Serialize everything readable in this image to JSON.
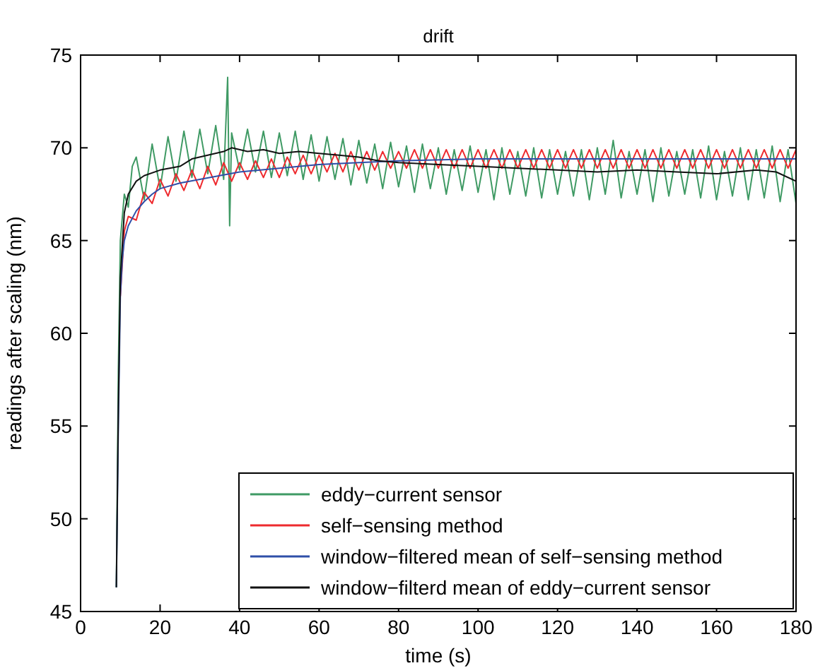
{
  "chart_data": {
    "type": "line",
    "title": "drift",
    "xlabel": "time (s)",
    "ylabel": "readings after scaling (nm)",
    "xlim": [
      0,
      180
    ],
    "ylim": [
      45,
      75
    ],
    "xticks": [
      0,
      20,
      40,
      60,
      80,
      100,
      120,
      140,
      160,
      180
    ],
    "yticks": [
      45,
      50,
      55,
      60,
      65,
      70,
      75
    ],
    "grid": false,
    "legend": "bottom right",
    "series": [
      {
        "name": "eddy−current sensor",
        "color": "#3f9a64",
        "x": [
          9,
          9.5,
          10,
          11,
          12,
          13,
          14,
          16,
          18,
          20,
          22,
          24,
          26,
          28,
          30,
          32,
          34,
          36,
          37,
          37.5,
          38,
          40,
          42,
          44,
          46,
          48,
          50,
          52,
          54,
          56,
          58,
          60,
          62,
          64,
          66,
          68,
          70,
          72,
          74,
          76,
          78,
          80,
          82,
          84,
          86,
          88,
          90,
          92,
          94,
          96,
          98,
          100,
          102,
          104,
          106,
          108,
          110,
          112,
          114,
          116,
          118,
          120,
          122,
          124,
          126,
          128,
          130,
          132,
          134,
          136,
          138,
          140,
          142,
          144,
          146,
          148,
          150,
          152,
          154,
          156,
          158,
          160,
          162,
          164,
          166,
          168,
          170,
          172,
          174,
          176,
          178,
          180
        ],
        "values": [
          46.3,
          58,
          65,
          67.5,
          66.8,
          69,
          69.5,
          67.2,
          70.2,
          67.8,
          70.6,
          68.2,
          70.9,
          68.4,
          71,
          68.6,
          71.2,
          68.3,
          73.8,
          65.8,
          70.8,
          68.8,
          71,
          68.7,
          70.9,
          68.4,
          70.8,
          68.5,
          70.9,
          68.3,
          70.7,
          68.2,
          70.6,
          68.3,
          70.5,
          68,
          70.4,
          68.1,
          70.2,
          67.8,
          70.3,
          67.9,
          70.1,
          67.6,
          70.2,
          67.8,
          70,
          67.5,
          69.9,
          67.7,
          70.1,
          67.6,
          69.9,
          67.2,
          70,
          67.5,
          69.8,
          67.4,
          70,
          67.3,
          69.9,
          67.5,
          69.8,
          67.4,
          69.9,
          67.2,
          70,
          67.5,
          70.4,
          67.3,
          69.8,
          67.5,
          69.9,
          67.1,
          70,
          67.4,
          69.8,
          67.5,
          69.9,
          67.3,
          70.1,
          67.2,
          69.8,
          67.4,
          70,
          67.2,
          69.9,
          67.3,
          70.1,
          67.1,
          69.9,
          67
        ]
      },
      {
        "name": "self−sensing method",
        "color": "#ee2a2e",
        "x": [
          10,
          11,
          12,
          14,
          16,
          18,
          20,
          22,
          24,
          26,
          28,
          30,
          32,
          34,
          36,
          38,
          40,
          42,
          44,
          46,
          48,
          50,
          52,
          54,
          56,
          58,
          60,
          62,
          64,
          66,
          68,
          70,
          72,
          74,
          76,
          78,
          80,
          82,
          84,
          86,
          88,
          90,
          92,
          94,
          96,
          98,
          100,
          102,
          104,
          106,
          108,
          110,
          112,
          114,
          116,
          118,
          120,
          122,
          124,
          126,
          128,
          130,
          132,
          134,
          136,
          138,
          140,
          142,
          144,
          146,
          148,
          150,
          152,
          154,
          156,
          158,
          160,
          162,
          164,
          166,
          168,
          170,
          172,
          174,
          176,
          178,
          180
        ],
        "values": [
          62,
          65.5,
          66.3,
          66.1,
          67.6,
          67,
          68.3,
          67.4,
          68.6,
          67.7,
          68.8,
          67.8,
          69,
          68,
          69.2,
          68.2,
          69.2,
          68.3,
          69.3,
          68.4,
          69.4,
          68.4,
          69.5,
          68.6,
          69.6,
          68.6,
          69.6,
          68.7,
          69.7,
          68.7,
          69.8,
          68.8,
          69.8,
          68.8,
          69.8,
          68.9,
          69.8,
          68.9,
          69.9,
          68.9,
          69.9,
          68.9,
          69.9,
          68.9,
          69.9,
          68.9,
          69.9,
          68.9,
          69.9,
          68.9,
          69.9,
          68.9,
          69.9,
          68.9,
          69.9,
          68.9,
          69.9,
          68.9,
          69.9,
          68.9,
          69.9,
          68.9,
          69.9,
          68.9,
          69.9,
          68.9,
          69.9,
          68.9,
          69.9,
          68.9,
          69.9,
          68.9,
          69.9,
          68.9,
          69.9,
          68.9,
          69.9,
          68.9,
          69.9,
          68.9,
          69.9,
          68.9,
          69.9,
          68.9,
          69.9,
          68.9,
          69.9
        ]
      },
      {
        "name": "window−filtered mean of self−sensing method",
        "color": "#2f4fa8",
        "x": [
          9,
          9.5,
          10,
          10.5,
          11,
          12,
          14,
          16,
          18,
          20,
          25,
          30,
          40,
          50,
          60,
          70,
          80,
          100,
          140,
          180
        ],
        "values": [
          46.3,
          55,
          62,
          64,
          65,
          65.8,
          66.6,
          67.1,
          67.5,
          67.8,
          68.1,
          68.3,
          68.7,
          68.9,
          69.1,
          69.2,
          69.3,
          69.4,
          69.4,
          69.4
        ]
      },
      {
        "name": "window−filterd mean of eddy−current sensor",
        "color": "#111111",
        "x": [
          9,
          9.5,
          10,
          11,
          12,
          14,
          16,
          20,
          25,
          28,
          32,
          36,
          38,
          42,
          46,
          50,
          55,
          60,
          65,
          70,
          75,
          80,
          90,
          100,
          110,
          120,
          130,
          140,
          150,
          160,
          170,
          175,
          180
        ],
        "values": [
          46.3,
          56,
          63,
          66.5,
          67.5,
          68.2,
          68.5,
          68.8,
          69,
          69.4,
          69.6,
          69.8,
          70,
          69.8,
          69.9,
          69.7,
          69.8,
          69.7,
          69.6,
          69.5,
          69.3,
          69.2,
          69.1,
          69,
          68.9,
          68.8,
          68.7,
          68.8,
          68.7,
          68.6,
          68.8,
          68.7,
          68.2
        ]
      }
    ]
  }
}
